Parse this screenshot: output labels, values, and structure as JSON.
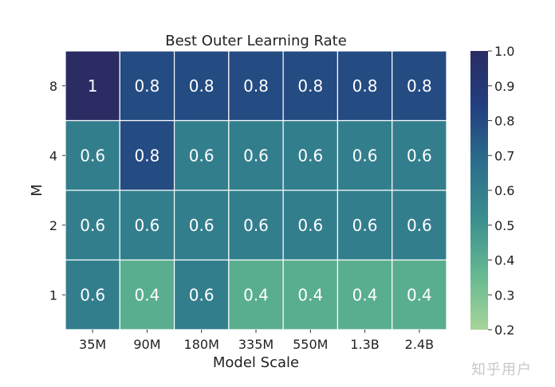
{
  "chart_data": {
    "type": "heatmap",
    "title": "Best Outer Learning Rate",
    "xlabel": "Model Scale",
    "ylabel": "M",
    "x_categories": [
      "35M",
      "90M",
      "180M",
      "335M",
      "550M",
      "1.3B",
      "2.4B"
    ],
    "y_categories": [
      "8",
      "4",
      "2",
      "1"
    ],
    "values": [
      [
        1,
        0.8,
        0.8,
        0.8,
        0.8,
        0.8,
        0.8
      ],
      [
        0.6,
        0.8,
        0.6,
        0.6,
        0.6,
        0.6,
        0.6
      ],
      [
        0.6,
        0.6,
        0.6,
        0.6,
        0.6,
        0.6,
        0.6
      ],
      [
        0.6,
        0.4,
        0.6,
        0.4,
        0.4,
        0.4,
        0.4
      ]
    ],
    "cell_labels": [
      [
        "1",
        "0.8",
        "0.8",
        "0.8",
        "0.8",
        "0.8",
        "0.8"
      ],
      [
        "0.6",
        "0.8",
        "0.6",
        "0.6",
        "0.6",
        "0.6",
        "0.6"
      ],
      [
        "0.6",
        "0.6",
        "0.6",
        "0.6",
        "0.6",
        "0.6",
        "0.6"
      ],
      [
        "0.6",
        "0.4",
        "0.6",
        "0.4",
        "0.4",
        "0.4",
        "0.4"
      ]
    ],
    "colorbar": {
      "range": [
        0.2,
        1.0
      ],
      "ticks": [
        0.2,
        0.3,
        0.4,
        0.5,
        0.6,
        0.7,
        0.8,
        0.9,
        1.0
      ],
      "tick_labels": [
        "0.2",
        "0.3",
        "0.4",
        "0.5",
        "0.6",
        "0.7",
        "0.8",
        "0.9",
        "1.0"
      ],
      "colormap_stops": [
        "#a8d49a",
        "#64b891",
        "#3a8e8e",
        "#2b6e8c",
        "#223f7f",
        "#2a2c63"
      ]
    },
    "grid": false
  },
  "watermark": "知乎用户"
}
